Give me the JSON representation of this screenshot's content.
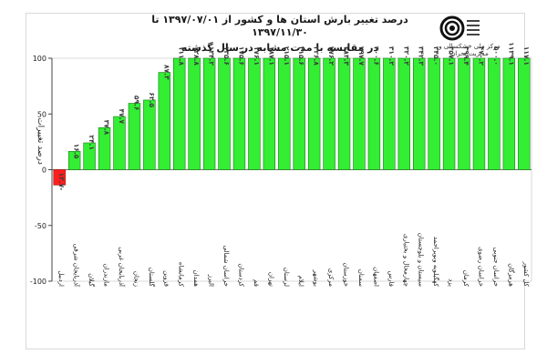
{
  "header": {
    "title_line1": "درصد تغییر بارش استان ها و کشور از ۱۳۹۷/۰۷/۰۱ تا ۱۳۹۷/۱۱/۳۰",
    "title_line2": "در مقایسه با مدت مشابه در سال گذشته"
  },
  "logo": {
    "caption": "مرکز ملی خشکسالی و مدیریت بحران",
    "icon": "drought-center-logo-icon"
  },
  "colors": {
    "positive_bar": "#33ee33",
    "negative_bar": "#ff1f1f",
    "bar_stroke": "#1a7a1a",
    "value_label": "#3a3a3a"
  },
  "chart_data": {
    "type": "bar",
    "ylabel": "درصد تغییرات",
    "ylim": [
      -100,
      100
    ],
    "yticks": [
      "100",
      "50",
      "0",
      "-50",
      "-100"
    ],
    "categories": [
      "اردبیل",
      "آذربایجان شرقی",
      "گیلان",
      "مازندران",
      "آذربایجان غربی",
      "زنجان",
      "گلستان",
      "قزوین",
      "کرمانشاه",
      "همدان",
      "البرز",
      "خراسان شمالی",
      "کردستان",
      "قم",
      "تهران",
      "لرستان",
      "ایلام",
      "بوشهر",
      "مرکزی",
      "خوزستان",
      "سمنان",
      "اصفهان",
      "فارس",
      "چهارمحال و بختیاری",
      "سیستان و بلوچستان",
      "کهگیلویه وبویراحمد",
      "یزد",
      "کرمان",
      "خراسان رضوی",
      "خراسان جنوبی",
      "هرمزگان",
      "کل کشور"
    ],
    "values": [
      -13.7,
      16.5,
      24.1,
      37.8,
      47.7,
      59.6,
      62.5,
      87.3,
      111.8,
      128.8,
      134.2,
      135.6,
      175.6,
      176.1,
      187.1,
      215.1,
      215.6,
      226.8,
      276.2,
      283.3,
      297.7,
      300.6,
      310.2,
      320.2,
      342.3,
      345.0,
      357.1,
      399.4,
      470.2,
      500.0,
      1139.1,
      117.1
    ],
    "value_labels": [
      "-۱۳.۷",
      "۱۶.۵",
      "۲۴.۱",
      "۳۷.۸",
      "۴۷.۷",
      "۵۹.۶",
      "۶۲.۵",
      "۸۷.۳",
      "۱۱۱.۸",
      "۱۲۸.۸",
      "۱۳۴.۲",
      "۱۳۵.۶",
      "۱۷۵.۶",
      "۱۷۶.۱",
      "۱۸۷.۱",
      "۲۱۵.۱",
      "۲۱۵.۶",
      "۲۲۶.۸",
      "۲۷۶.۲",
      "۲۸۳.۳",
      "۲۹۷.۷",
      "۳۰۰.۶",
      "۳۱۰.۲",
      "۳۲۰.۲",
      "۳۴۲.۳",
      "۳۴۵.۰",
      "۳۵۷.۱",
      "۳۹۹.۴",
      "۴۷۰.۲",
      "۵۰۰.۰",
      "۱۱۳۹.۱",
      "۱۱۷.۱"
    ],
    "grid": false,
    "legend": "none"
  }
}
